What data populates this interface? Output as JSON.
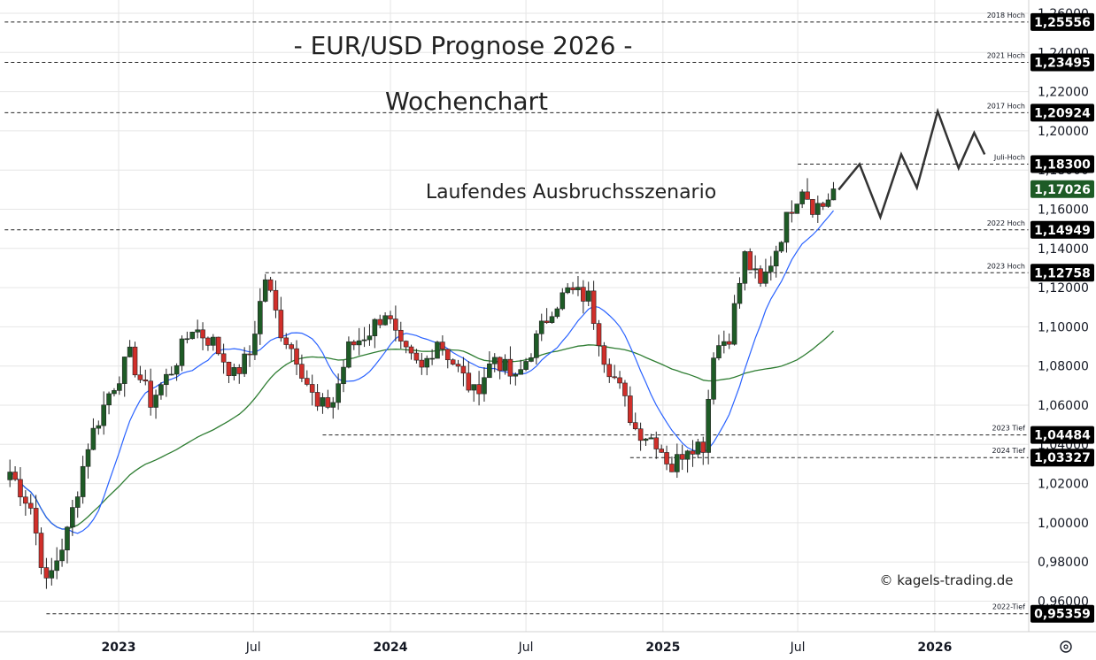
{
  "chart_data": {
    "type": "candlestick",
    "title": "- EUR/USD Prognose 2026 -",
    "subtitle": "Wochenchart",
    "annotation": "Laufendes Ausbruchsszenario",
    "copyright": "© kagels-trading.de",
    "timeframe": "weekly",
    "ylim": [
      0.945,
      1.265
    ],
    "x_range": [
      "2022-08",
      "2026-04"
    ],
    "x_ticks": [
      {
        "label": "2023",
        "date": "2023-01-01",
        "bold": true
      },
      {
        "label": "Jul",
        "date": "2023-07-01",
        "bold": false
      },
      {
        "label": "2024",
        "date": "2024-01-01",
        "bold": true
      },
      {
        "label": "Jul",
        "date": "2024-07-01",
        "bold": false
      },
      {
        "label": "2025",
        "date": "2025-01-01",
        "bold": true
      },
      {
        "label": "Jul",
        "date": "2025-07-01",
        "bold": false
      },
      {
        "label": "2026",
        "date": "2026-01-01",
        "bold": true
      }
    ],
    "y_ticks": [
      "1,26000",
      "1,24000",
      "1,22000",
      "1,20000",
      "1,18000",
      "1,16000",
      "1,14000",
      "1,12000",
      "1,10000",
      "1,08000",
      "1,06000",
      "1,04000",
      "1,02000",
      "1,00000",
      "0,98000",
      "0,96000"
    ],
    "y_tick_values": [
      1.26,
      1.24,
      1.22,
      1.2,
      1.18,
      1.16,
      1.14,
      1.12,
      1.1,
      1.08,
      1.06,
      1.04,
      1.02,
      1.0,
      0.98,
      0.96
    ],
    "levels": [
      {
        "label": "2018 Hoch",
        "value": 1.25556,
        "display": "1,25556",
        "start": "2022-08"
      },
      {
        "label": "2021 Hoch",
        "value": 1.23495,
        "display": "1,23495",
        "start": "2022-08"
      },
      {
        "label": "2017 Hoch",
        "value": 1.20924,
        "display": "1,20924",
        "start": "2022-08"
      },
      {
        "label": "Juli-Hoch",
        "value": 1.183,
        "display": "1,18300",
        "start": "2025-07-01"
      },
      {
        "label": "2022 Hoch",
        "value": 1.14949,
        "display": "1,14949",
        "start": "2022-08"
      },
      {
        "label": "2023 Hoch",
        "value": 1.12758,
        "display": "1,12758",
        "start": "2023-07-17"
      },
      {
        "label": "2023 Tief",
        "value": 1.04484,
        "display": "1,04484",
        "start": "2023-10-02"
      },
      {
        "label": "2024 Tief",
        "value": 1.03327,
        "display": "1,03327",
        "start": "2024-11-18"
      },
      {
        "label": "2022-Tief",
        "value": 0.95359,
        "display": "0,95359",
        "start": "2022-09-26"
      }
    ],
    "last_price": {
      "value": 1.17026,
      "display": "1,17026",
      "color": "#1e5b26"
    },
    "colors": {
      "up": "#1e5b26",
      "down": "#d12f2a",
      "ma_fast": "#2962ff",
      "ma_slow": "#2e7d32",
      "level_box": "#000000",
      "grid": "#e6e6e6",
      "projection": "#333333"
    },
    "closes": [
      {
        "date": "2022-08-08",
        "close": 1.026
      },
      {
        "date": "2022-09-05",
        "close": 1.008
      },
      {
        "date": "2022-09-26",
        "close": 0.968
      },
      {
        "date": "2022-10-24",
        "close": 0.995
      },
      {
        "date": "2022-11-21",
        "close": 1.04
      },
      {
        "date": "2022-12-19",
        "close": 1.066
      },
      {
        "date": "2023-01-16",
        "close": 1.085
      },
      {
        "date": "2023-02-13",
        "close": 1.062
      },
      {
        "date": "2023-03-13",
        "close": 1.078
      },
      {
        "date": "2023-04-10",
        "close": 1.1
      },
      {
        "date": "2023-05-08",
        "close": 1.092
      },
      {
        "date": "2023-06-05",
        "close": 1.075
      },
      {
        "date": "2023-06-26",
        "close": 1.086
      },
      {
        "date": "2023-07-17",
        "close": 1.125
      },
      {
        "date": "2023-08-07",
        "close": 1.098
      },
      {
        "date": "2023-08-28",
        "close": 1.085
      },
      {
        "date": "2023-09-25",
        "close": 1.058
      },
      {
        "date": "2023-10-16",
        "close": 1.062
      },
      {
        "date": "2023-11-06",
        "close": 1.089
      },
      {
        "date": "2023-12-04",
        "close": 1.098
      },
      {
        "date": "2023-12-25",
        "close": 1.108
      },
      {
        "date": "2024-01-15",
        "close": 1.088
      },
      {
        "date": "2024-02-12",
        "close": 1.078
      },
      {
        "date": "2024-03-04",
        "close": 1.094
      },
      {
        "date": "2024-04-01",
        "close": 1.078
      },
      {
        "date": "2024-04-22",
        "close": 1.066
      },
      {
        "date": "2024-05-20",
        "close": 1.085
      },
      {
        "date": "2024-06-17",
        "close": 1.072
      },
      {
        "date": "2024-07-08",
        "close": 1.088
      },
      {
        "date": "2024-08-05",
        "close": 1.11
      },
      {
        "date": "2024-08-26",
        "close": 1.118
      },
      {
        "date": "2024-09-23",
        "close": 1.115
      },
      {
        "date": "2024-10-14",
        "close": 1.085
      },
      {
        "date": "2024-11-04",
        "close": 1.068
      },
      {
        "date": "2024-11-25",
        "close": 1.048
      },
      {
        "date": "2024-12-23",
        "close": 1.042
      },
      {
        "date": "2025-01-13",
        "close": 1.028
      },
      {
        "date": "2025-02-03",
        "close": 1.04
      },
      {
        "date": "2025-02-24",
        "close": 1.04
      },
      {
        "date": "2025-03-10",
        "close": 1.088
      },
      {
        "date": "2025-03-31",
        "close": 1.096
      },
      {
        "date": "2025-04-21",
        "close": 1.136
      },
      {
        "date": "2025-05-12",
        "close": 1.12
      },
      {
        "date": "2025-06-02",
        "close": 1.14
      },
      {
        "date": "2025-06-23",
        "close": 1.162
      },
      {
        "date": "2025-07-07",
        "close": 1.172
      },
      {
        "date": "2025-07-21",
        "close": 1.162
      },
      {
        "date": "2025-08-04",
        "close": 1.162
      },
      {
        "date": "2025-08-18",
        "close": 1.17
      }
    ],
    "projection": [
      {
        "date": "2025-08-25",
        "value": 1.17
      },
      {
        "date": "2025-09-22",
        "value": 1.183
      },
      {
        "date": "2025-10-20",
        "value": 1.156
      },
      {
        "date": "2025-11-17",
        "value": 1.188
      },
      {
        "date": "2025-12-08",
        "value": 1.171
      },
      {
        "date": "2026-01-05",
        "value": 1.21
      },
      {
        "date": "2026-02-02",
        "value": 1.181
      },
      {
        "date": "2026-02-23",
        "value": 1.199
      },
      {
        "date": "2026-03-09",
        "value": 1.188
      }
    ]
  }
}
